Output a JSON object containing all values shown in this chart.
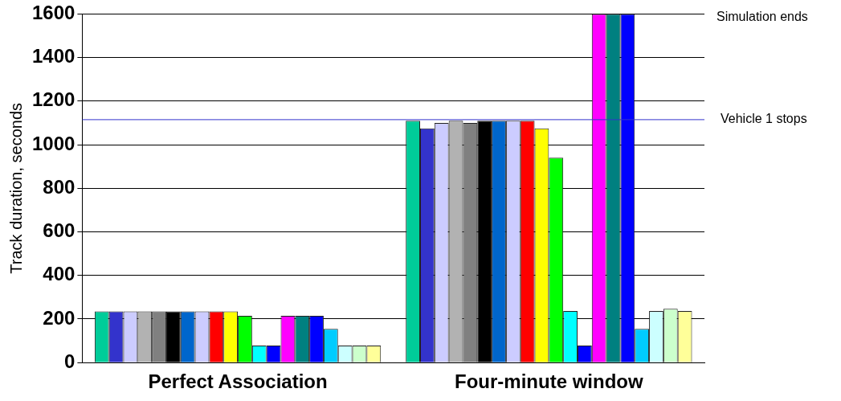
{
  "chart_data": {
    "type": "bar",
    "ylabel": "Track duration, seconds",
    "categories": [
      "Perfect Association",
      "Four-minute window"
    ],
    "series": [
      {
        "color": "#00cc99",
        "values": [
          235,
          1110
        ]
      },
      {
        "color": "#3333cc",
        "values": [
          235,
          1075
        ]
      },
      {
        "color": "#ccccff",
        "values": [
          235,
          1100
        ]
      },
      {
        "color": "#b2b2b2",
        "values": [
          235,
          1110
        ]
      },
      {
        "color": "#808080",
        "values": [
          235,
          1100
        ]
      },
      {
        "color": "#000000",
        "values": [
          235,
          1110
        ]
      },
      {
        "color": "#0066cc",
        "values": [
          235,
          1110
        ]
      },
      {
        "color": "#ccccff",
        "values": [
          235,
          1110
        ]
      },
      {
        "color": "#ff0000",
        "values": [
          235,
          1110
        ]
      },
      {
        "color": "#ffff00",
        "values": [
          235,
          1075
        ]
      },
      {
        "color": "#00ff00",
        "values": [
          215,
          940
        ]
      },
      {
        "color": "#00ffff",
        "values": [
          78,
          237
        ]
      },
      {
        "color": "#0000ff",
        "values": [
          78,
          78
        ]
      },
      {
        "color": "#ff00ff",
        "values": [
          215,
          1600
        ]
      },
      {
        "color": "#008080",
        "values": [
          215,
          1600
        ]
      },
      {
        "color": "#0000ff",
        "values": [
          215,
          1600
        ]
      },
      {
        "color": "#00ccff",
        "values": [
          155,
          155
        ]
      },
      {
        "color": "#ccffff",
        "values": [
          78,
          237
        ]
      },
      {
        "color": "#ccffcc",
        "values": [
          78,
          247
        ]
      },
      {
        "color": "#ffff99",
        "values": [
          78,
          237
        ]
      }
    ],
    "ylim": [
      0,
      1600
    ],
    "yticks": [
      0,
      200,
      400,
      600,
      800,
      1000,
      1200,
      1400,
      1600
    ],
    "grid": "y",
    "ref_lines": [
      {
        "axis": "y",
        "value": 1115,
        "label": "Vehicle 1 stops",
        "color": "#3333cc"
      }
    ],
    "annotations": [
      "Simulation ends"
    ],
    "legend": false
  }
}
